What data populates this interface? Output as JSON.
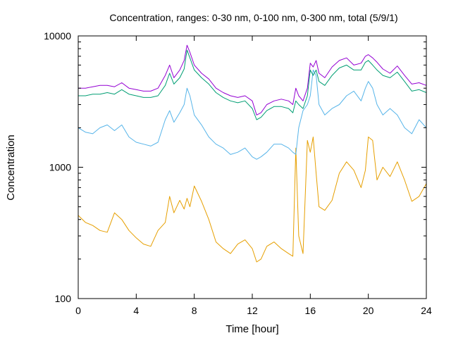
{
  "chart_data": {
    "type": "line",
    "title": "Concentration, ranges: 0-30 nm, 0-100 nm, 0-300 nm, total (5/9/1)",
    "xlabel": "Time [hour]",
    "ylabel": "Concentration",
    "xlim": [
      0,
      24
    ],
    "ylim": [
      100,
      10000
    ],
    "yscale": "log",
    "grid": false,
    "legend": "none",
    "xticks": [
      0,
      4,
      8,
      12,
      16,
      20,
      24
    ],
    "xtick_labels": [
      "0",
      "4",
      "8",
      "12",
      "16",
      "20",
      "24"
    ],
    "yticks": [
      100,
      1000,
      10000
    ],
    "ytick_labels": [
      "100",
      "1000",
      "10000"
    ],
    "x": [
      0,
      0.5,
      1,
      1.5,
      2,
      2.5,
      3,
      3.5,
      4,
      4.5,
      5,
      5.5,
      6,
      6.3,
      6.6,
      7,
      7.3,
      7.5,
      7.7,
      8,
      8.5,
      9,
      9.5,
      10,
      10.5,
      11,
      11.5,
      12,
      12.3,
      12.6,
      13,
      13.5,
      14,
      14.5,
      14.8,
      15,
      15.2,
      15.5,
      15.8,
      16,
      16.2,
      16.4,
      16.6,
      17,
      17.5,
      18,
      18.5,
      19,
      19.5,
      19.8,
      20,
      20.3,
      20.6,
      21,
      21.5,
      22,
      22.5,
      23,
      23.5,
      24
    ],
    "series": [
      {
        "color": "#e69f00",
        "values": [
          430,
          380,
          360,
          330,
          320,
          450,
          400,
          330,
          290,
          260,
          250,
          330,
          380,
          600,
          450,
          560,
          480,
          580,
          500,
          720,
          550,
          400,
          270,
          240,
          220,
          260,
          280,
          240,
          190,
          200,
          250,
          270,
          240,
          220,
          210,
          1400,
          300,
          220,
          1600,
          1300,
          1700,
          900,
          500,
          470,
          560,
          900,
          1100,
          950,
          700,
          950,
          1700,
          1600,
          800,
          1000,
          850,
          1100,
          800,
          550,
          600,
          750
        ]
      },
      {
        "color": "#56b4e9",
        "values": [
          2000,
          1850,
          1800,
          2000,
          2100,
          1900,
          2100,
          1700,
          1550,
          1500,
          1450,
          1550,
          2300,
          2700,
          2200,
          2600,
          3000,
          4000,
          3500,
          2500,
          2100,
          1700,
          1500,
          1400,
          1250,
          1300,
          1400,
          1200,
          1150,
          1200,
          1300,
          1500,
          1500,
          1400,
          1300,
          1250,
          2000,
          2700,
          3000,
          3500,
          5500,
          5000,
          3000,
          2500,
          2800,
          3000,
          3500,
          3800,
          3200,
          4000,
          4500,
          4000,
          3000,
          2500,
          2800,
          2500,
          2000,
          1800,
          2300,
          2000
        ]
      },
      {
        "color": "#009e73",
        "values": [
          3500,
          3500,
          3600,
          3600,
          3700,
          3600,
          3900,
          3600,
          3500,
          3400,
          3400,
          3500,
          4200,
          5200,
          4300,
          4800,
          5600,
          7800,
          6800,
          5500,
          4800,
          4300,
          3700,
          3400,
          3200,
          3100,
          3200,
          2800,
          2300,
          2400,
          2700,
          2900,
          2900,
          2800,
          2600,
          3200,
          3000,
          2800,
          3500,
          5500,
          5000,
          5500,
          4500,
          4200,
          5000,
          5700,
          6000,
          5500,
          5500,
          6300,
          6500,
          6000,
          5500,
          5000,
          4800,
          5300,
          4500,
          3800,
          3900,
          3700
        ]
      },
      {
        "color": "#9400d3",
        "values": [
          4000,
          4000,
          4100,
          4200,
          4200,
          4100,
          4400,
          4000,
          3900,
          3800,
          3800,
          4000,
          5000,
          6000,
          4800,
          5500,
          6500,
          8500,
          7500,
          6000,
          5200,
          4700,
          4000,
          3700,
          3500,
          3400,
          3500,
          3200,
          2500,
          2600,
          3000,
          3200,
          3300,
          3200,
          3000,
          4000,
          3500,
          3200,
          4000,
          6200,
          5800,
          6500,
          5200,
          4800,
          5800,
          6500,
          6800,
          6000,
          6200,
          7000,
          7200,
          6800,
          6300,
          5600,
          5200,
          5900,
          5000,
          4300,
          4400,
          4200
        ]
      }
    ]
  }
}
